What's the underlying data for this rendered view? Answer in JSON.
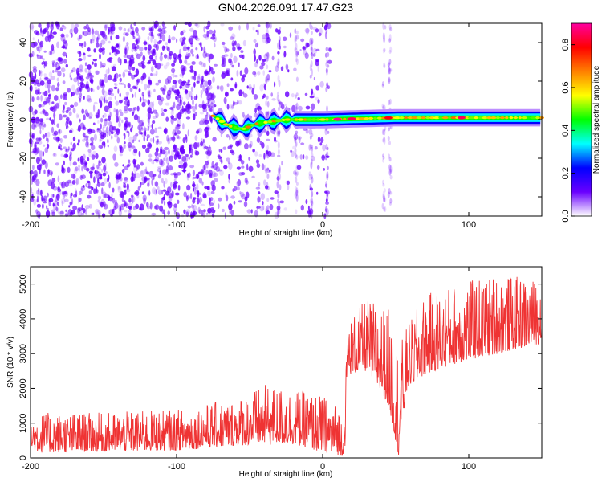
{
  "chart_data": [
    {
      "type": "heatmap",
      "title": "GN04.2026.091.17.47.G23",
      "xlabel": "Height of straight line (km)",
      "ylabel": "Frequency (Hz)",
      "xlim": [
        -200,
        150
      ],
      "ylim": [
        -50,
        50
      ],
      "xticks": [
        -200,
        -100,
        0,
        100
      ],
      "xtick_labels": [
        "-200",
        "-100",
        "0",
        "100"
      ],
      "yticks": [
        -40,
        -20,
        0,
        20,
        40
      ],
      "ytick_labels": [
        "-40",
        "-20",
        "0",
        "20",
        "40"
      ],
      "colorbar": {
        "label": "Normalized spectral amplitude",
        "range": [
          0.0,
          0.9
        ],
        "ticks": [
          0.0,
          0.2,
          0.4,
          0.6,
          0.8
        ],
        "tick_labels": [
          "0.0",
          "0.2",
          "0.4",
          "0.6",
          "0.8"
        ],
        "colors": [
          "#ffffff",
          "#6a00ff",
          "#0000ff",
          "#00ffff",
          "#00ff00",
          "#ffff00",
          "#ff8000",
          "#ff0000",
          "#ff00a0"
        ]
      },
      "signal": {
        "x_start": -75,
        "ridge_frequency": [
          {
            "x": -75,
            "y": 2
          },
          {
            "x": -65,
            "y": -3
          },
          {
            "x": -55,
            "y": -5
          },
          {
            "x": -45,
            "y": -2
          },
          {
            "x": -35,
            "y": -1
          },
          {
            "x": -25,
            "y": 0
          },
          {
            "x": -10,
            "y": 0
          },
          {
            "x": 0,
            "y": 0
          },
          {
            "x": 50,
            "y": 1
          },
          {
            "x": 100,
            "y": 1
          },
          {
            "x": 150,
            "y": 1
          }
        ],
        "peak_amplitudes": [
          {
            "x": -30,
            "value": 0.5
          },
          {
            "x": 10,
            "value": 0.9
          },
          {
            "x": 20,
            "value": 0.85
          },
          {
            "x": 45,
            "value": 0.8
          },
          {
            "x": 95,
            "value": 0.85
          }
        ]
      },
      "noise_region": {
        "x_range": [
          -200,
          5
        ],
        "color": "#6a00ff"
      }
    },
    {
      "type": "line",
      "xlabel": "Height of straight line (km)",
      "ylabel": "SNR (10 * v/v)",
      "xlim": [
        -200,
        150
      ],
      "ylim": [
        0,
        5500
      ],
      "xticks": [
        -200,
        -100,
        0,
        100
      ],
      "xtick_labels": [
        "-200",
        "-100",
        "0",
        "100"
      ],
      "yticks": [
        0,
        1000,
        2000,
        3000,
        4000,
        5000
      ],
      "ytick_labels": [
        "0",
        "1000",
        "2000",
        "3000",
        "4000",
        "5000"
      ],
      "color": "#ef3333",
      "series": [
        {
          "name": "SNR",
          "envelope": [
            {
              "x": -200,
              "low": 150,
              "high": 1300
            },
            {
              "x": -150,
              "low": 180,
              "high": 1300
            },
            {
              "x": -100,
              "low": 220,
              "high": 1400
            },
            {
              "x": -60,
              "low": 350,
              "high": 1700
            },
            {
              "x": -40,
              "low": 400,
              "high": 2100
            },
            {
              "x": -20,
              "low": 400,
              "high": 2000
            },
            {
              "x": 0,
              "low": 150,
              "high": 1800
            },
            {
              "x": 15,
              "low": 50,
              "high": 1400
            },
            {
              "x": 17,
              "low": 2400,
              "high": 3900
            },
            {
              "x": 30,
              "low": 2500,
              "high": 4600
            },
            {
              "x": 45,
              "low": 1500,
              "high": 4300
            },
            {
              "x": 52,
              "low": 50,
              "high": 3200
            },
            {
              "x": 58,
              "low": 2000,
              "high": 3800
            },
            {
              "x": 70,
              "low": 2400,
              "high": 4700
            },
            {
              "x": 90,
              "low": 2700,
              "high": 5000
            },
            {
              "x": 120,
              "low": 3000,
              "high": 5300
            },
            {
              "x": 150,
              "low": 3300,
              "high": 5100
            }
          ]
        }
      ]
    }
  ]
}
